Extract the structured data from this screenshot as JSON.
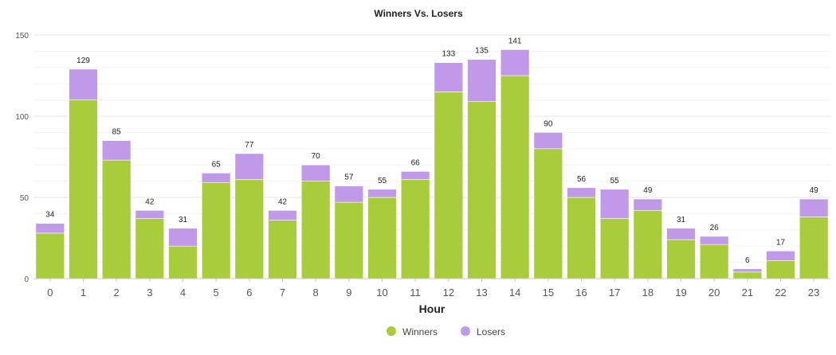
{
  "chart_data": {
    "type": "bar",
    "stacked": true,
    "title": "Winners Vs. Losers",
    "xlabel": "Hour",
    "ylabel": "",
    "ylim": [
      0,
      150
    ],
    "yticks": [
      0,
      50,
      100,
      150
    ],
    "grid": true,
    "legend_position": "bottom",
    "categories": [
      "0",
      "1",
      "2",
      "3",
      "4",
      "5",
      "6",
      "7",
      "8",
      "9",
      "10",
      "11",
      "12",
      "13",
      "14",
      "15",
      "16",
      "17",
      "18",
      "19",
      "20",
      "21",
      "22",
      "23"
    ],
    "series": [
      {
        "name": "Winners",
        "color": "#a8cc3c",
        "values": [
          28,
          110,
          73,
          37,
          20,
          59,
          61,
          36,
          60,
          47,
          50,
          61,
          115,
          109,
          125,
          80,
          50,
          37,
          42,
          24,
          21,
          4,
          11,
          38
        ]
      },
      {
        "name": "Losers",
        "color": "#c09ae8",
        "values": [
          6,
          19,
          12,
          5,
          11,
          6,
          16,
          6,
          10,
          10,
          5,
          5,
          18,
          26,
          16,
          10,
          6,
          18,
          7,
          7,
          5,
          2,
          6,
          11
        ]
      }
    ],
    "totals": [
      34,
      129,
      85,
      42,
      31,
      65,
      77,
      42,
      70,
      57,
      55,
      66,
      133,
      135,
      141,
      90,
      56,
      55,
      49,
      31,
      26,
      6,
      17,
      49
    ]
  }
}
